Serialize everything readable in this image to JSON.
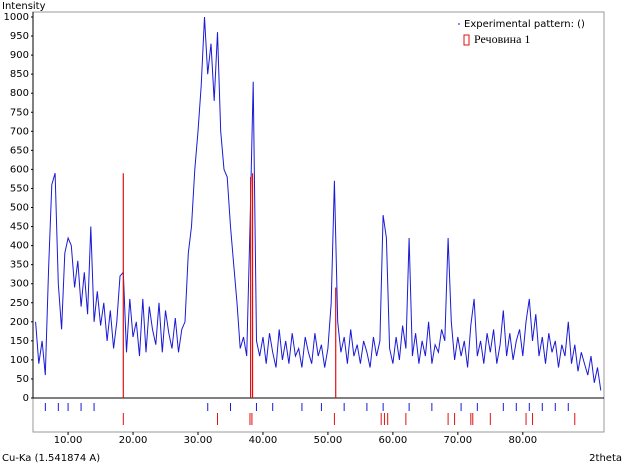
{
  "chart_data": {
    "type": "line",
    "y_label": "Intensity",
    "x_label": "2theta",
    "radiation_label": "Cu-Ka (1.541874 A)",
    "xlim": [
      4.6,
      92.5
    ],
    "ylim": [
      0,
      1000
    ],
    "xticks": [
      {
        "value": 10,
        "label": "10.00"
      },
      {
        "value": 20,
        "label": "20.00"
      },
      {
        "value": 30,
        "label": "30.00"
      },
      {
        "value": 40,
        "label": "40.00"
      },
      {
        "value": 50,
        "label": "50.00"
      },
      {
        "value": 60,
        "label": "60.00"
      },
      {
        "value": 70,
        "label": "70.00"
      },
      {
        "value": 80,
        "label": "80.00"
      }
    ],
    "yticks": [
      0,
      50,
      100,
      150,
      200,
      250,
      300,
      350,
      400,
      450,
      500,
      550,
      600,
      650,
      700,
      750,
      800,
      850,
      900,
      950,
      1000
    ],
    "x": [
      5,
      5.5,
      6,
      6.5,
      7,
      7.5,
      8,
      8.5,
      9,
      9.5,
      10,
      10.5,
      11,
      11.5,
      12,
      12.5,
      13,
      13.5,
      14,
      14.5,
      15,
      15.5,
      16,
      16.5,
      17,
      17.5,
      18,
      18.5,
      19,
      19.5,
      20,
      20.5,
      21,
      21.5,
      22,
      22.5,
      23,
      23.5,
      24,
      24.5,
      25,
      25.5,
      26,
      26.5,
      27,
      27.5,
      28,
      28.5,
      29,
      29.5,
      30,
      30.5,
      31,
      31.5,
      32,
      32.5,
      33,
      33.5,
      34,
      34.5,
      35,
      35.5,
      36,
      36.5,
      37,
      37.5,
      38,
      38.5,
      39,
      39.5,
      40,
      40.5,
      41,
      41.5,
      42,
      42.5,
      43,
      43.5,
      44,
      44.5,
      45,
      45.5,
      46,
      46.5,
      47,
      47.5,
      48,
      48.5,
      49,
      49.5,
      50,
      50.5,
      51,
      51.5,
      52,
      52.5,
      53,
      53.5,
      54,
      54.5,
      55,
      55.5,
      56,
      56.5,
      57,
      57.5,
      58,
      58.5,
      59,
      59.5,
      60,
      60.5,
      61,
      61.5,
      62,
      62.5,
      63,
      63.5,
      64,
      64.5,
      65,
      65.5,
      66,
      66.5,
      67,
      67.5,
      68,
      68.5,
      69,
      69.5,
      70,
      70.5,
      71,
      71.5,
      72,
      72.5,
      73,
      73.5,
      74,
      74.5,
      75,
      75.5,
      76,
      76.5,
      77,
      77.5,
      78,
      78.5,
      79,
      79.5,
      80,
      80.5,
      81,
      81.5,
      82,
      82.5,
      83,
      83.5,
      84,
      84.5,
      85,
      85.5,
      86,
      86.5,
      87,
      87.5,
      88,
      88.5,
      89,
      89.5,
      90,
      90.5,
      91,
      91.5,
      92
    ],
    "series": [
      {
        "name": "Experimental pattern: ()",
        "color": "#1a1ad6",
        "values": [
          200,
          90,
          150,
          60,
          340,
          560,
          590,
          300,
          180,
          380,
          420,
          400,
          290,
          360,
          240,
          330,
          220,
          450,
          200,
          280,
          190,
          250,
          150,
          230,
          130,
          200,
          320,
          330,
          120,
          260,
          160,
          200,
          110,
          260,
          120,
          240,
          180,
          140,
          250,
          120,
          230,
          170,
          130,
          210,
          120,
          180,
          200,
          380,
          450,
          600,
          700,
          820,
          1000,
          850,
          930,
          780,
          960,
          700,
          600,
          580,
          450,
          350,
          250,
          130,
          160,
          110,
          450,
          830,
          150,
          110,
          160,
          90,
          170,
          120,
          80,
          180,
          100,
          150,
          90,
          170,
          110,
          130,
          80,
          160,
          120,
          90,
          170,
          110,
          140,
          80,
          130,
          250,
          570,
          200,
          120,
          160,
          90,
          180,
          110,
          140,
          90,
          150,
          120,
          80,
          160,
          110,
          150,
          480,
          420,
          130,
          90,
          160,
          100,
          190,
          130,
          420,
          110,
          170,
          90,
          150,
          110,
          200,
          90,
          140,
          120,
          180,
          150,
          420,
          200,
          100,
          160,
          110,
          150,
          80,
          190,
          260,
          110,
          150,
          90,
          170,
          120,
          180,
          90,
          140,
          230,
          110,
          170,
          100,
          150,
          180,
          110,
          200,
          260,
          150,
          220,
          110,
          160,
          90,
          170,
          120,
          150,
          80,
          140,
          110,
          200,
          90,
          140,
          70,
          120,
          90,
          60,
          110,
          40,
          80,
          20
        ],
        "peak_positions": [
          6.5,
          8.5,
          10,
          12,
          14,
          31.5,
          35,
          39,
          41.5,
          46,
          49,
          52.5,
          56,
          58.5,
          62.5,
          66,
          70.5,
          73,
          77,
          79,
          81,
          83,
          85,
          87
        ]
      }
    ],
    "phases": [
      {
        "name": "Речовина 1",
        "color": "#e01010",
        "peaks_x": [
          18.5,
          38.1,
          38.4,
          51.2
        ],
        "peaks": [
          590,
          580,
          590,
          290
        ],
        "reflections_x": [
          18.5,
          33,
          38,
          38.3,
          51,
          58.2,
          58.7,
          59.2,
          62,
          68.5,
          69.5,
          72,
          72.3,
          75,
          80.5,
          81.5,
          88
        ]
      }
    ]
  }
}
